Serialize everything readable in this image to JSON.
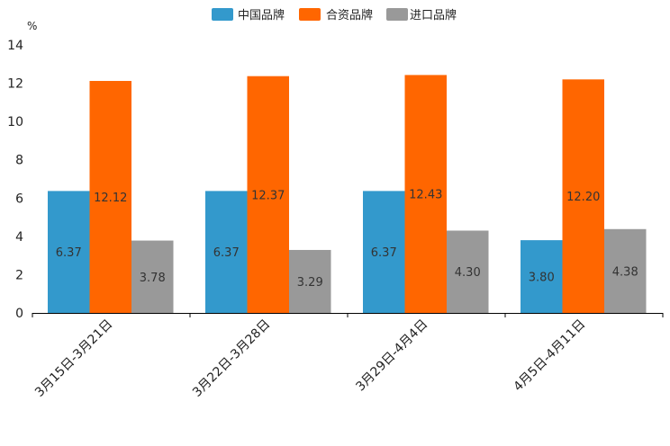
{
  "chart_data": {
    "type": "bar",
    "unit_label": "%",
    "categories": [
      "3月15日-3月21日",
      "3月22日-3月28日",
      "3月29日-4月4日",
      "4月5日-4月11日"
    ],
    "series": [
      {
        "name": "中国品牌",
        "color": "#3399cc",
        "values": [
          6.37,
          6.37,
          6.37,
          3.8
        ],
        "labels": [
          "6.37",
          "6.37",
          "6.37",
          "3.80"
        ]
      },
      {
        "name": "合资品牌",
        "color": "#ff6600",
        "values": [
          12.12,
          12.37,
          12.43,
          12.2
        ],
        "labels": [
          "12.12",
          "12.37",
          "12.43",
          "12.20"
        ]
      },
      {
        "name": "进口品牌",
        "color": "#999999",
        "values": [
          3.78,
          3.29,
          4.3,
          4.38
        ],
        "labels": [
          "3.78",
          "3.29",
          "4.30",
          "4.38"
        ]
      }
    ],
    "ylim": [
      0,
      14
    ],
    "yticks": [
      "0",
      "2",
      "4",
      "6",
      "8",
      "10",
      "12",
      "14"
    ],
    "legend_position": "top-center",
    "grid": false
  }
}
